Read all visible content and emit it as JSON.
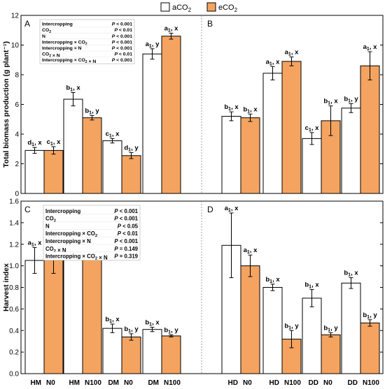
{
  "legend": [
    {
      "label": "aCO",
      "sub": "2",
      "color": "#ffffff"
    },
    {
      "label": "eCO",
      "sub": "2",
      "color": "#f4a460"
    }
  ],
  "colors": {
    "aCO2": "#ffffff",
    "eCO2": "#f4a460",
    "stroke": "#000000",
    "divider": "#888888"
  },
  "x_labels": [
    {
      "a": "HM",
      "b": "N0"
    },
    {
      "a": "HM",
      "b": "N100"
    },
    {
      "a": "DM",
      "b": "N0"
    },
    {
      "a": "DM",
      "b": "N100"
    },
    {
      "a": "HD",
      "b": "N0"
    },
    {
      "a": "HD",
      "b": "N100"
    },
    {
      "a": "DD",
      "b": "N0"
    },
    {
      "a": "DD",
      "b": "N100"
    }
  ],
  "chart_data": [
    {
      "type": "bar",
      "panel": "top",
      "ylabel": "Total biomass production (g plant⁻¹)",
      "ylim": [
        0,
        12
      ],
      "yticks": [
        0,
        2,
        4,
        6,
        8,
        10,
        12
      ],
      "ytick_labels": [
        "0",
        "2",
        "4",
        "6",
        "8",
        "10",
        "12"
      ],
      "grid": false,
      "panel_letters": [
        "A",
        "B"
      ],
      "series": [
        {
          "name": "aCO2",
          "values": [
            2.9,
            6.35,
            3.55,
            9.4,
            5.2,
            8.1,
            3.7,
            5.75
          ],
          "errors": [
            0.2,
            0.45,
            0.15,
            0.35,
            0.3,
            0.45,
            0.4,
            0.3
          ],
          "labels": [
            {
              "l": "d",
              "s": "1",
              "r": "x"
            },
            {
              "l": "b",
              "s": "1",
              "r": "x"
            },
            {
              "l": "c",
              "s": "1",
              "r": "x"
            },
            {
              "l": "a",
              "s": "1",
              "r": "y"
            },
            {
              "l": "b",
              "s": "1",
              "r": "x"
            },
            {
              "l": "a",
              "s": "1",
              "r": "x"
            },
            {
              "l": "c",
              "s": "1",
              "r": "x"
            },
            {
              "l": "b",
              "s": "1",
              "r": "y"
            }
          ]
        },
        {
          "name": "eCO2",
          "values": [
            2.9,
            5.1,
            2.55,
            10.6,
            5.1,
            8.9,
            4.9,
            8.6
          ],
          "errors": [
            0.25,
            0.15,
            0.2,
            0.2,
            0.25,
            0.3,
            1.0,
            0.95
          ],
          "labels": [
            {
              "l": "c",
              "s": "1",
              "r": "x"
            },
            {
              "l": "b",
              "s": "1",
              "r": "y"
            },
            {
              "l": "d",
              "s": "1",
              "r": "y"
            },
            {
              "l": "a",
              "s": "1",
              "r": "x"
            },
            {
              "l": "b",
              "s": "1",
              "r": "x"
            },
            {
              "l": "a",
              "s": "1",
              "r": "x"
            },
            {
              "l": "b",
              "s": "1",
              "r": "x"
            },
            {
              "l": "a",
              "s": "1",
              "r": "x"
            }
          ]
        }
      ],
      "stats": [
        {
          "term": "Intercropping",
          "p": "P < 0.001"
        },
        {
          "term": "CO2",
          "p": "P < 0.01"
        },
        {
          "term": "N",
          "p": "P < 0.001"
        },
        {
          "term": "Intercropping × CO2",
          "p": "P < 0.001"
        },
        {
          "term": "Intercropping × N",
          "p": "P < 0.001"
        },
        {
          "term": "CO2 × N",
          "p": "P < 0.01"
        },
        {
          "term": "Intercropping × CO2 × N",
          "p": "P < 0.001"
        }
      ]
    },
    {
      "type": "bar",
      "panel": "bottom",
      "ylabel": "Harvest index",
      "ylim": [
        0,
        1.6
      ],
      "yticks": [
        0,
        0.2,
        0.4,
        0.6,
        0.8,
        1.0,
        1.2,
        1.4,
        1.6
      ],
      "ytick_labels": [
        "0.0",
        "0.2",
        "0.4",
        "0.6",
        "0.8",
        "1.0",
        "1.2",
        "1.4",
        "1.6"
      ],
      "grid": false,
      "panel_letters": [
        "C",
        "D"
      ],
      "series": [
        {
          "name": "aCO2",
          "values": [
            1.05,
            1.16,
            0.42,
            0.41,
            1.19,
            0.8,
            0.7,
            0.84
          ],
          "errors": [
            0.12,
            0.1,
            0.04,
            0.02,
            0.3,
            0.03,
            0.08,
            0.05
          ],
          "labels": [
            {
              "l": "a",
              "s": "1",
              "r": "x"
            },
            {
              "l": "a",
              "s": "1",
              "r": "x"
            },
            {
              "l": "b",
              "s": "1",
              "r": "x"
            },
            {
              "l": "b",
              "s": "1",
              "r": "x"
            },
            {
              "l": "a",
              "s": "1",
              "r": "x"
            },
            {
              "l": "b",
              "s": "1",
              "r": "x"
            },
            {
              "l": "b",
              "s": "1",
              "r": "x"
            },
            {
              "l": "b",
              "s": "1",
              "r": "x"
            }
          ]
        },
        {
          "name": "eCO2",
          "values": [
            1.06,
            1.11,
            0.34,
            0.35,
            1.0,
            0.32,
            0.36,
            0.47
          ],
          "errors": [
            0.13,
            0.03,
            0.03,
            0.01,
            0.1,
            0.08,
            0.02,
            0.03
          ],
          "labels": [
            {
              "l": "a",
              "s": "1",
              "r": "x"
            },
            {
              "l": "a",
              "s": "1",
              "r": "x"
            },
            {
              "l": "b",
              "s": "1",
              "r": "y"
            },
            {
              "l": "b",
              "s": "1",
              "r": "y"
            },
            {
              "l": "a",
              "s": "1",
              "r": "x"
            },
            {
              "l": "b",
              "s": "1",
              "r": "y"
            },
            {
              "l": "b",
              "s": "1",
              "r": "y"
            },
            {
              "l": "b",
              "s": "1",
              "r": "y"
            }
          ]
        }
      ],
      "stats": [
        {
          "term": "Intercropping",
          "p": "P < 0.001"
        },
        {
          "term": "CO2",
          "p": "P < 0.001"
        },
        {
          "term": "N",
          "p": "P < 0.05"
        },
        {
          "term": "Intercropping × CO2",
          "p": "P < 0.01"
        },
        {
          "term": "Intercropping × N",
          "p": "P < 0.001"
        },
        {
          "term": "CO2 × N",
          "p": "P = 0.149"
        },
        {
          "term": "Intercropping × CO2 × N",
          "p": "P = 0.319"
        }
      ]
    }
  ]
}
